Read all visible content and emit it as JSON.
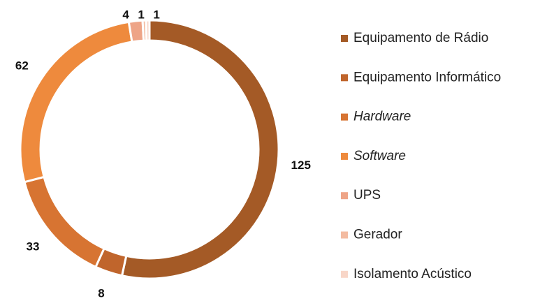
{
  "chart_data": {
    "type": "donut",
    "categories": [
      "Equipamento de Rádio",
      "Equipamento Informático",
      "Hardware",
      "Software",
      "UPS",
      "Gerador",
      "Isolamento Acústico"
    ],
    "values": [
      125,
      8,
      33,
      62,
      4,
      1,
      1
    ],
    "colors": [
      "#a45a26",
      "#c0652c",
      "#d77432",
      "#ee8a3d",
      "#eea487",
      "#f3bba1",
      "#f8d6c8"
    ],
    "legend_italic": [
      false,
      false,
      true,
      true,
      false,
      false,
      false
    ],
    "legend": "right"
  }
}
